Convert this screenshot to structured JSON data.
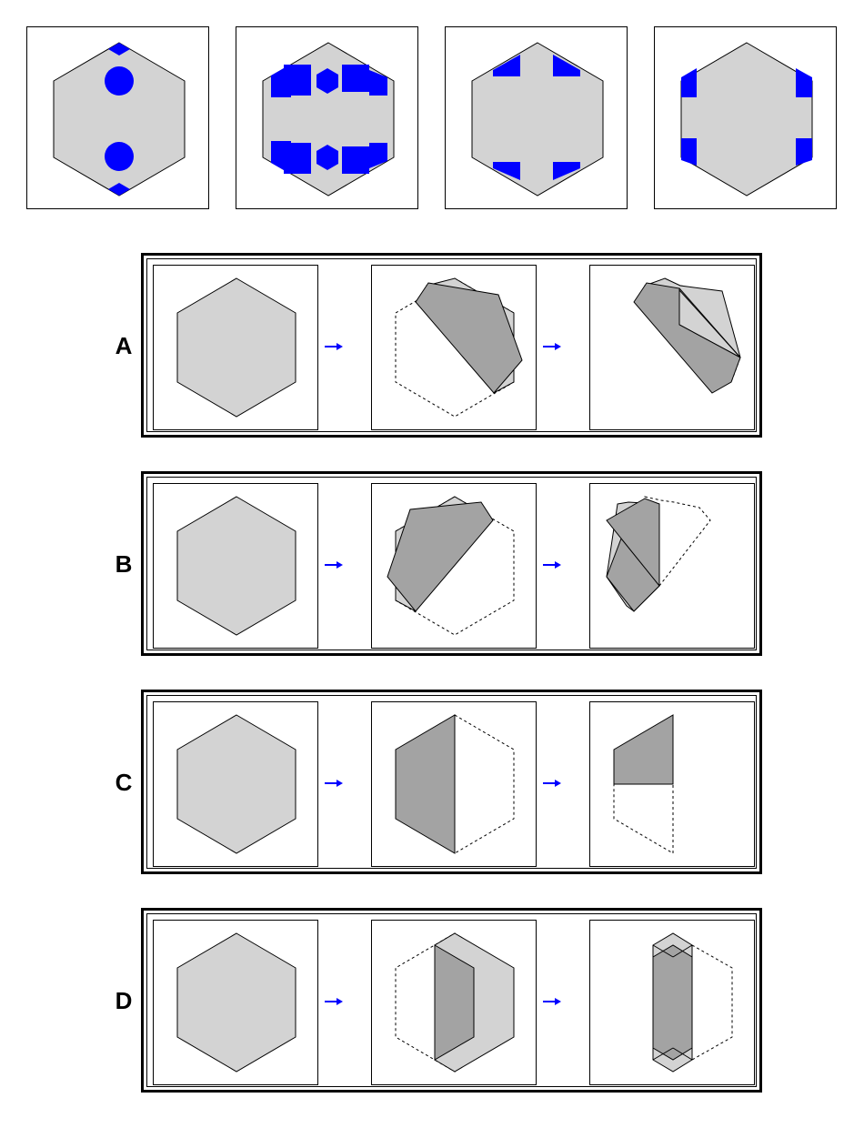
{
  "colors": {
    "paper": "#d3d3d3",
    "folded": "#a3a3a3",
    "hole": "#0000ff",
    "arrow": "#0000ff",
    "outline": "#000000"
  },
  "icons": {
    "arrow": "right-arrow-icon"
  },
  "options": [
    {
      "letter": "A"
    },
    {
      "letter": "B"
    },
    {
      "letter": "C"
    },
    {
      "letter": "D"
    }
  ]
}
